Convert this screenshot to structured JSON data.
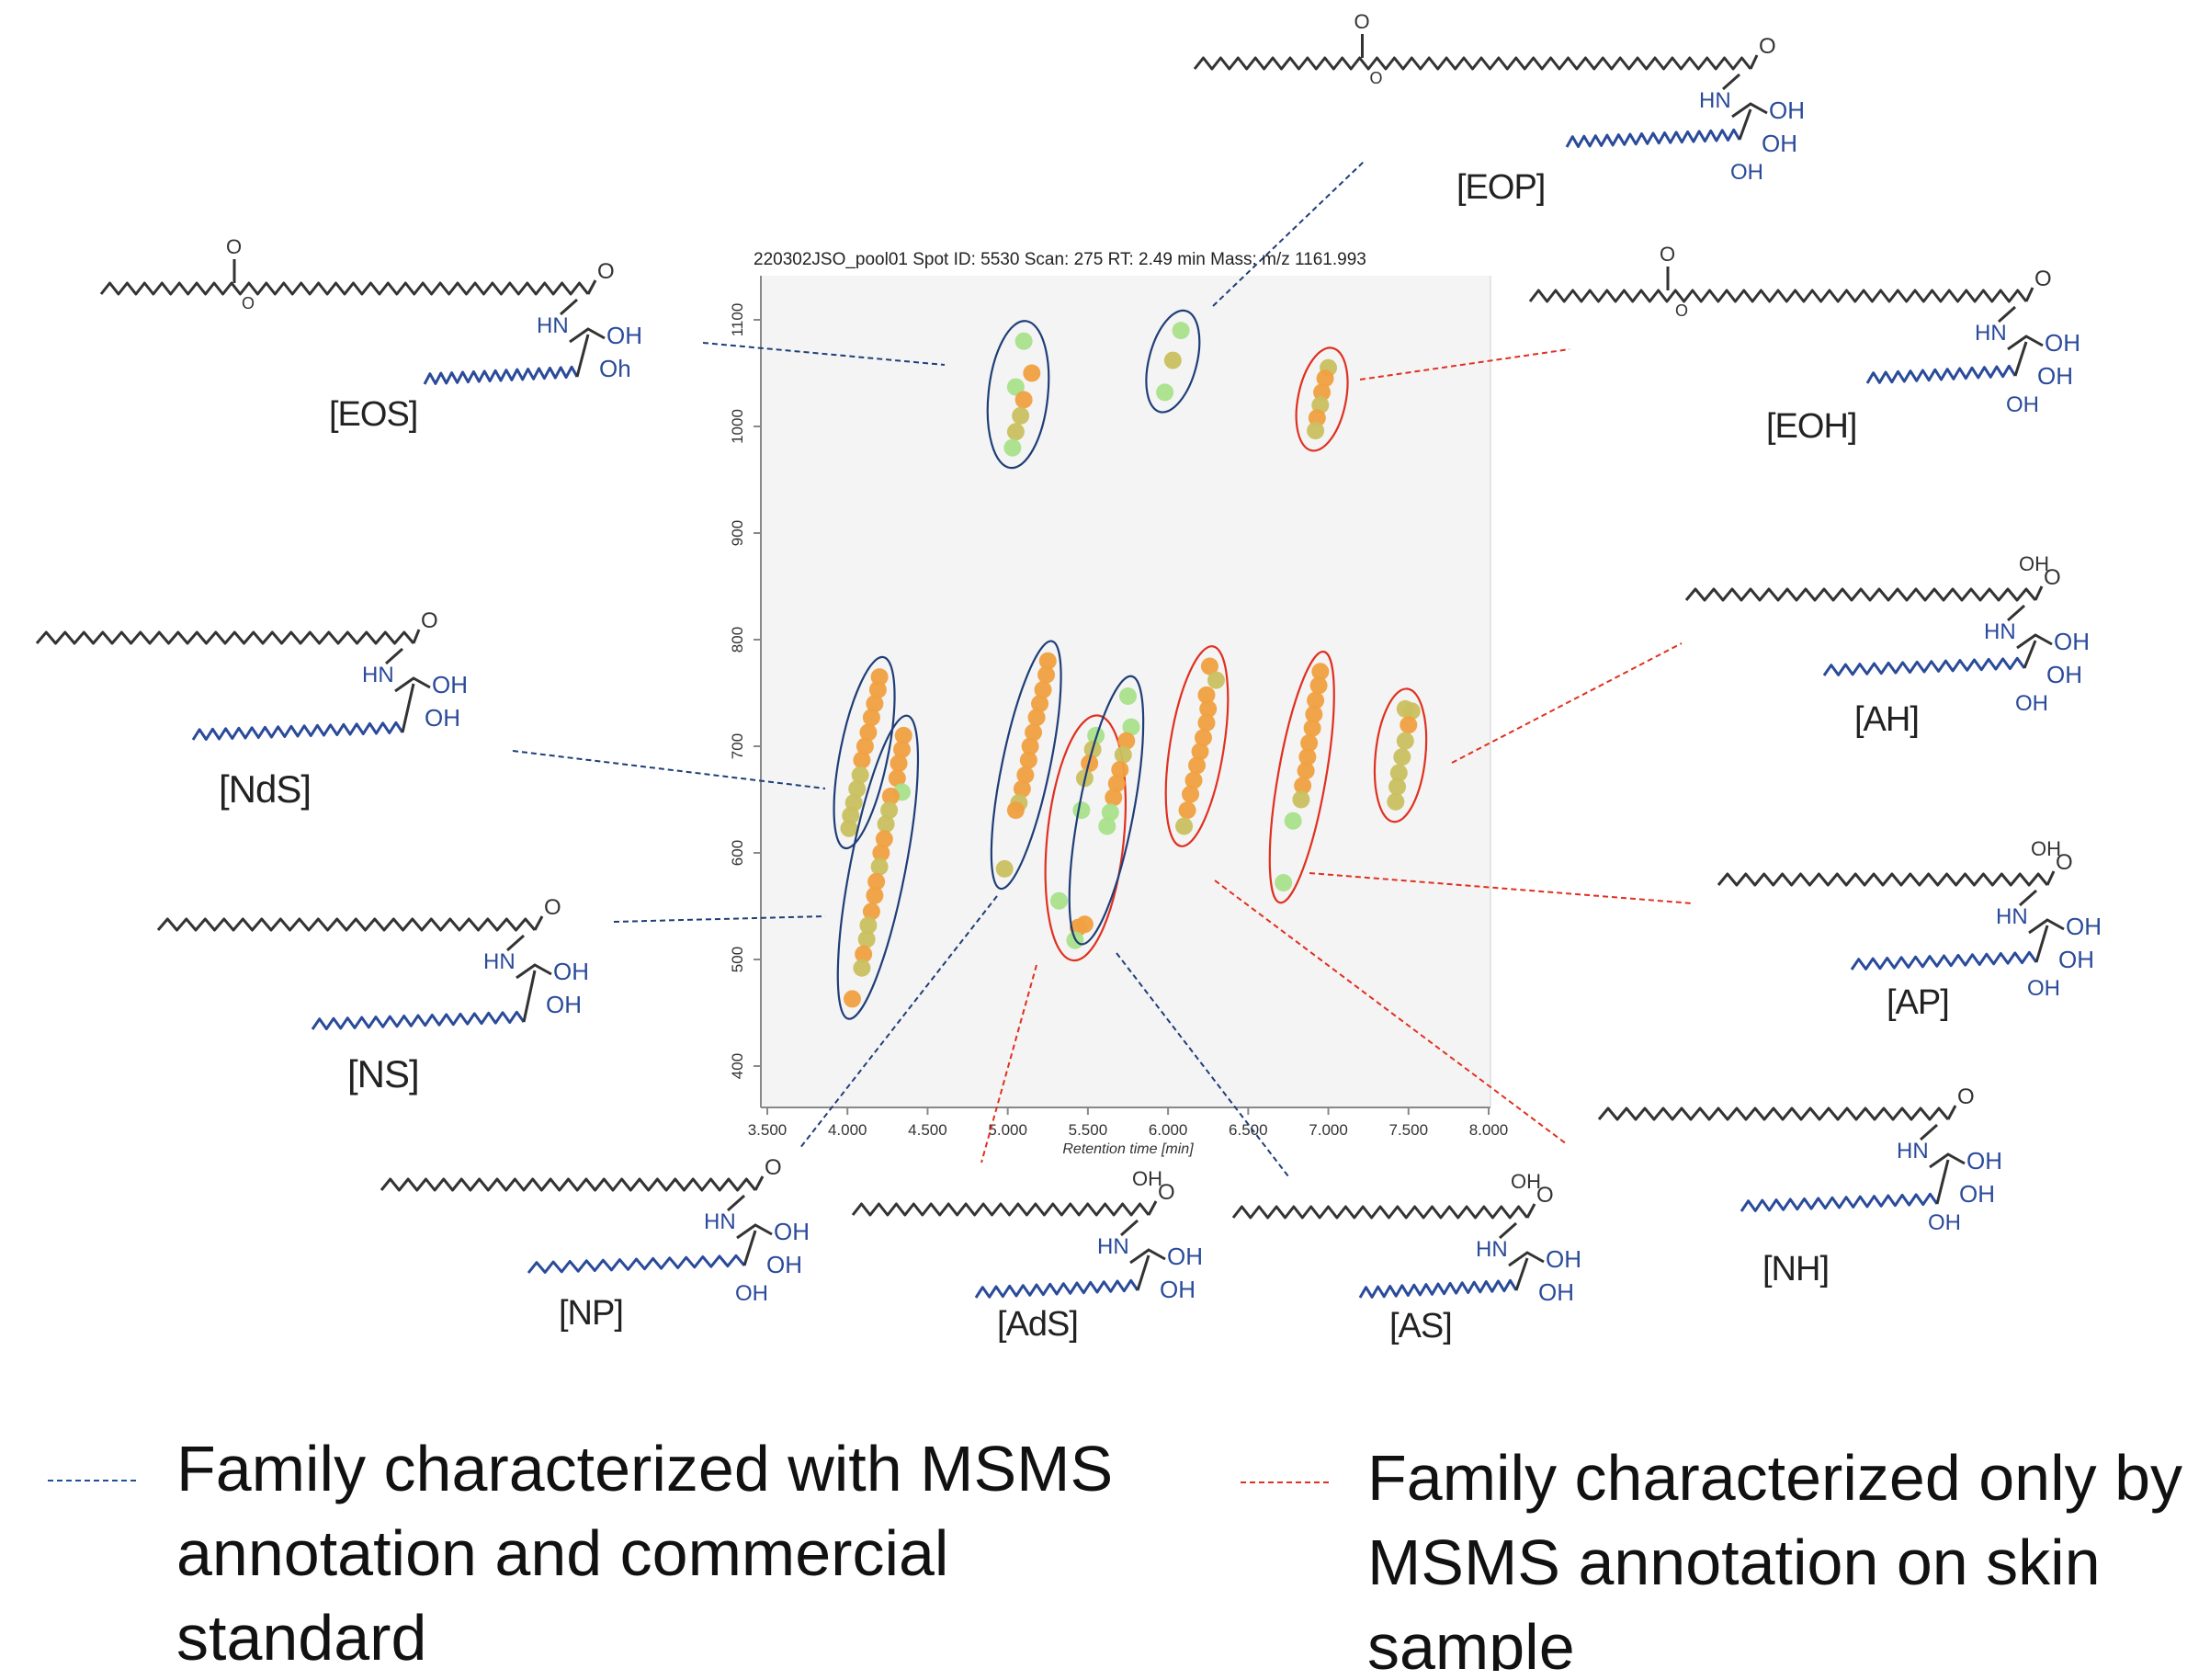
{
  "header_text": "220302JSO_pool01  Spot ID: 5530  Scan: 275  RT: 2.49 min  Mass: m/z 1161.993",
  "chart_data": {
    "type": "scatter",
    "xlabel": "Retention time [min]",
    "ylabel": "",
    "xlim": [
      3.5,
      8.0
    ],
    "ylim": [
      380,
      1120
    ],
    "xticks": [
      "3.500",
      "4.000",
      "4.500",
      "5.000",
      "5.500",
      "6.000",
      "6.500",
      "7.000",
      "7.500",
      "8.000"
    ],
    "yticks": [
      "400",
      "500",
      "600",
      "700",
      "800",
      "900",
      "1000",
      "1100"
    ],
    "grid": false,
    "point_colors": {
      "orange": "#f0a040",
      "olive": "#c9c060",
      "green": "#a8e08a"
    },
    "groups": [
      {
        "label": "[EOS]",
        "family": "msms_and_standard",
        "color": "#1f3e78",
        "points": [
          [
            5.1,
            1080,
            "green"
          ],
          [
            5.15,
            1050,
            "orange"
          ],
          [
            5.05,
            1037,
            "green"
          ],
          [
            5.1,
            1025,
            "orange"
          ],
          [
            5.08,
            1010,
            "olive"
          ],
          [
            5.05,
            995,
            "olive"
          ],
          [
            5.03,
            980,
            "green"
          ]
        ]
      },
      {
        "label": "[EOP]",
        "family": "msms_and_standard",
        "color": "#1f3e78",
        "points": [
          [
            6.08,
            1090,
            "green"
          ],
          [
            6.03,
            1062,
            "olive"
          ],
          [
            5.98,
            1032,
            "green"
          ]
        ]
      },
      {
        "label": "[EOH]",
        "family": "msms_only",
        "color": "#e03020",
        "points": [
          [
            7.0,
            1055,
            "olive"
          ],
          [
            6.98,
            1045,
            "orange"
          ],
          [
            6.96,
            1032,
            "orange"
          ],
          [
            6.95,
            1020,
            "olive"
          ],
          [
            6.93,
            1008,
            "orange"
          ],
          [
            6.92,
            996,
            "olive"
          ]
        ]
      },
      {
        "label": "[NdS]",
        "family": "msms_and_standard",
        "color": "#1f3e78",
        "points": [
          [
            4.2,
            765,
            "orange"
          ],
          [
            4.19,
            753,
            "orange"
          ],
          [
            4.17,
            740,
            "orange"
          ],
          [
            4.15,
            727,
            "orange"
          ],
          [
            4.13,
            713,
            "orange"
          ],
          [
            4.11,
            700,
            "orange"
          ],
          [
            4.09,
            687,
            "orange"
          ],
          [
            4.08,
            673,
            "olive"
          ],
          [
            4.06,
            660,
            "olive"
          ],
          [
            4.04,
            647,
            "olive"
          ],
          [
            4.02,
            635,
            "olive"
          ],
          [
            4.01,
            623,
            "olive"
          ]
        ]
      },
      {
        "label": "[NS]",
        "family": "msms_and_standard",
        "color": "#1f3e78",
        "points": [
          [
            4.35,
            710,
            "orange"
          ],
          [
            4.34,
            697,
            "orange"
          ],
          [
            4.32,
            684,
            "orange"
          ],
          [
            4.31,
            670,
            "orange"
          ],
          [
            4.34,
            657,
            "green"
          ],
          [
            4.27,
            653,
            "orange"
          ],
          [
            4.26,
            640,
            "olive"
          ],
          [
            4.24,
            627,
            "olive"
          ],
          [
            4.23,
            613,
            "orange"
          ],
          [
            4.21,
            600,
            "orange"
          ],
          [
            4.2,
            587,
            "olive"
          ],
          [
            4.18,
            573,
            "orange"
          ],
          [
            4.17,
            560,
            "orange"
          ],
          [
            4.15,
            545,
            "orange"
          ],
          [
            4.13,
            532,
            "olive"
          ],
          [
            4.12,
            519,
            "olive"
          ],
          [
            4.1,
            505,
            "orange"
          ],
          [
            4.09,
            492,
            "olive"
          ],
          [
            4.03,
            463,
            "orange"
          ]
        ]
      },
      {
        "label": "[NP]",
        "family": "msms_and_standard",
        "color": "#1f3e78",
        "points": [
          [
            5.25,
            780,
            "orange"
          ],
          [
            5.24,
            767,
            "orange"
          ],
          [
            5.22,
            753,
            "orange"
          ],
          [
            5.2,
            740,
            "orange"
          ],
          [
            5.18,
            727,
            "orange"
          ],
          [
            5.16,
            713,
            "orange"
          ],
          [
            5.14,
            700,
            "orange"
          ],
          [
            5.13,
            687,
            "orange"
          ],
          [
            5.11,
            673,
            "orange"
          ],
          [
            5.09,
            660,
            "orange"
          ],
          [
            5.07,
            647,
            "olive"
          ],
          [
            5.05,
            640,
            "orange"
          ],
          [
            4.98,
            585,
            "olive"
          ]
        ]
      },
      {
        "label": "[AdS]",
        "family": "msms_only",
        "color": "#e03020",
        "points": [
          [
            5.55,
            710,
            "green"
          ],
          [
            5.53,
            697,
            "olive"
          ],
          [
            5.51,
            684,
            "orange"
          ],
          [
            5.48,
            670,
            "olive"
          ],
          [
            5.46,
            640,
            "green"
          ],
          [
            5.32,
            555,
            "green"
          ],
          [
            5.44,
            530,
            "orange"
          ],
          [
            5.42,
            518,
            "green"
          ]
        ]
      },
      {
        "label": "[AS]",
        "family": "msms_and_standard",
        "color": "#1f3e78",
        "points": [
          [
            5.75,
            747,
            "green"
          ],
          [
            5.77,
            718,
            "green"
          ],
          [
            5.74,
            705,
            "orange"
          ],
          [
            5.72,
            692,
            "olive"
          ],
          [
            5.7,
            678,
            "orange"
          ],
          [
            5.68,
            665,
            "orange"
          ],
          [
            5.66,
            652,
            "orange"
          ],
          [
            5.64,
            638,
            "green"
          ],
          [
            5.62,
            625,
            "green"
          ],
          [
            5.48,
            533,
            "orange"
          ]
        ]
      },
      {
        "label": "[NH]",
        "family": "msms_only",
        "color": "#e03020",
        "points": [
          [
            6.26,
            775,
            "orange"
          ],
          [
            6.3,
            762,
            "olive"
          ],
          [
            6.24,
            748,
            "orange"
          ],
          [
            6.25,
            735,
            "orange"
          ],
          [
            6.24,
            722,
            "orange"
          ],
          [
            6.22,
            708,
            "orange"
          ],
          [
            6.2,
            695,
            "orange"
          ],
          [
            6.18,
            682,
            "orange"
          ],
          [
            6.16,
            668,
            "orange"
          ],
          [
            6.14,
            655,
            "orange"
          ],
          [
            6.12,
            640,
            "orange"
          ],
          [
            6.1,
            625,
            "olive"
          ]
        ]
      },
      {
        "label": "[AP]",
        "family": "msms_only",
        "color": "#e03020",
        "points": [
          [
            6.95,
            770,
            "orange"
          ],
          [
            6.94,
            757,
            "orange"
          ],
          [
            6.92,
            743,
            "orange"
          ],
          [
            6.91,
            730,
            "orange"
          ],
          [
            6.9,
            717,
            "orange"
          ],
          [
            6.88,
            703,
            "orange"
          ],
          [
            6.87,
            690,
            "orange"
          ],
          [
            6.86,
            677,
            "orange"
          ],
          [
            6.84,
            663,
            "orange"
          ],
          [
            6.83,
            650,
            "olive"
          ],
          [
            6.78,
            630,
            "green"
          ],
          [
            6.72,
            572,
            "green"
          ]
        ]
      },
      {
        "label": "[AH]",
        "family": "msms_only",
        "color": "#e03020",
        "points": [
          [
            7.48,
            735,
            "olive"
          ],
          [
            7.52,
            733,
            "olive"
          ],
          [
            7.5,
            720,
            "orange"
          ],
          [
            7.48,
            705,
            "olive"
          ],
          [
            7.46,
            690,
            "olive"
          ],
          [
            7.44,
            675,
            "olive"
          ],
          [
            7.43,
            662,
            "olive"
          ],
          [
            7.42,
            648,
            "olive"
          ]
        ]
      }
    ]
  },
  "structures": [
    {
      "label": "[EOS]",
      "ester": true
    },
    {
      "label": "[EOP]",
      "ester": true
    },
    {
      "label": "[EOH]",
      "ester": true
    },
    {
      "label": "[NdS]",
      "ester": false
    },
    {
      "label": "[NS]",
      "ester": false
    },
    {
      "label": "[AH]",
      "ester": false
    },
    {
      "label": "[AP]",
      "ester": false
    },
    {
      "label": "[NH]",
      "ester": false
    },
    {
      "label": "[NP]",
      "ester": false
    },
    {
      "label": "[AdS]",
      "ester": false
    },
    {
      "label": "[AS]",
      "ester": false
    }
  ],
  "chem_text": {
    "o": "O",
    "hn": "HN",
    "oh": "OH",
    "oh_variant": "Oh"
  },
  "legend": {
    "blue": {
      "text_lines": [
        "Family characterized  with MSMS",
        "annotation and commercial",
        "standard"
      ],
      "color": "#1f4e9a"
    },
    "red": {
      "text_lines": [
        "Family characterized only by",
        "MSMS annotation on skin",
        "sample"
      ],
      "color": "#e03020"
    }
  }
}
